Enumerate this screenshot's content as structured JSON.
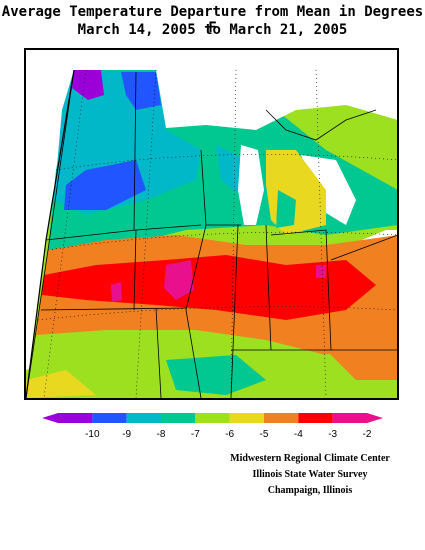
{
  "title": {
    "line1": "Average Temperature Departure from Mean in Degrees F",
    "line2": "March 14, 2005 to March 21, 2005"
  },
  "legend": {
    "ticks": [
      "-10",
      "-9",
      "-8",
      "-7",
      "-6",
      "-5",
      "-4",
      "-3",
      "-2"
    ],
    "colors": [
      "#9b00d8",
      "#2155ff",
      "#00b8c8",
      "#00c890",
      "#9ce020",
      "#e8d820",
      "#f08020",
      "#ff0000",
      "#e8108c"
    ]
  },
  "colors": {
    "purple": "#9b00d8",
    "blue": "#2155ff",
    "cyan": "#00b8c8",
    "teal": "#00c890",
    "green": "#9ce020",
    "yellow": "#e8d820",
    "orange": "#f08020",
    "red": "#ff0000",
    "magenta": "#e8108c"
  },
  "credits": {
    "line1": "Midwestern Regional Climate Center",
    "line2": "Illinois State Water Survey",
    "line3": "Champaign, Illinois"
  }
}
